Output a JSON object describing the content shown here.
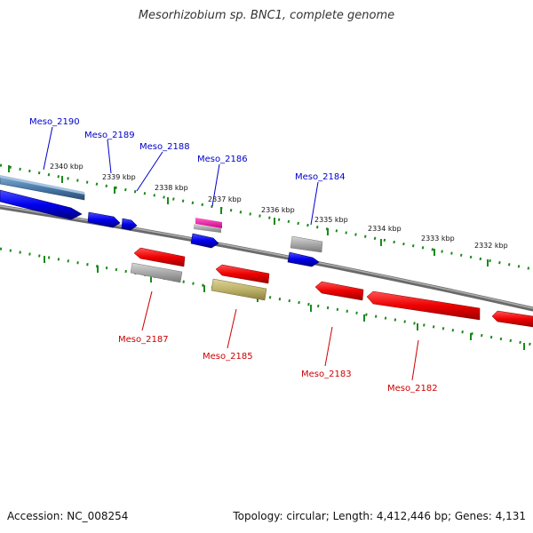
{
  "title": "Mesorhizobium sp. BNC1, complete genome",
  "footer": {
    "accession": "Accession: NC_008254",
    "stats": "Topology: circular; Length: 4,412,446 bp; Genes: 4,131"
  },
  "colors": {
    "backbone": "#808080",
    "ticks": "#1a8a1a",
    "forward_label": "#0000cc",
    "reverse_label": "#cc0000"
  },
  "ruler_labels": [
    "2340 kbp",
    "2339 kbp",
    "2338 kbp",
    "2337 kbp",
    "2336 kbp",
    "2335 kbp",
    "2334 kbp",
    "2333 kbp",
    "2332 kbp"
  ],
  "forward_labels": [
    "Meso_2190",
    "Meso_2189",
    "Meso_2188",
    "Meso_2186",
    "Meso_2184"
  ],
  "reverse_labels": [
    "Meso_2187",
    "Meso_2185",
    "Meso_2183",
    "Meso_2182"
  ]
}
